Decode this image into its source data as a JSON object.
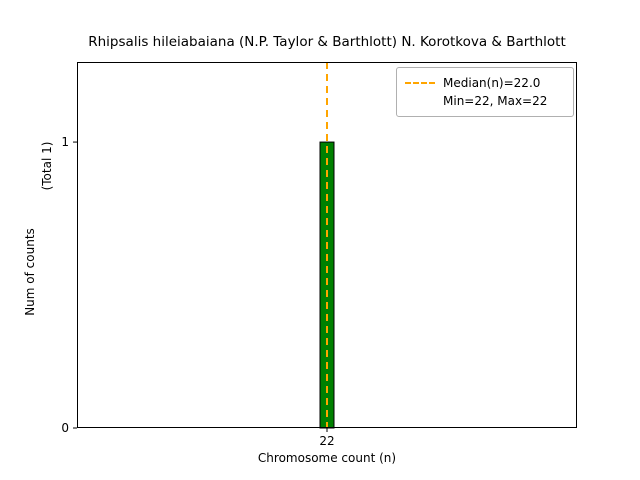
{
  "figure": {
    "title": "Rhipsalis hileiabaiana (N.P. Taylor & Barthlott) N. Korotkova & Barthlott",
    "xlabel": "Chromosome count (n)",
    "ylabel_main": "Num of counts",
    "ylabel_total": "(Total 1)",
    "legend": {
      "median_label": "Median(n)=22.0",
      "minmax_label": "Min=22, Max=22"
    }
  },
  "chart_data": {
    "type": "bar",
    "title": "Rhipsalis hileiabaiana (N.P. Taylor & Barthlott) N. Korotkova & Barthlott",
    "xlabel": "Chromosome count (n)",
    "ylabel": "Num of counts (Total 1)",
    "categories": [
      22
    ],
    "values": [
      1
    ],
    "series": [
      {
        "name": "counts",
        "values": [
          1
        ]
      }
    ],
    "stats": {
      "median": 22.0,
      "min": 22,
      "max": 22,
      "total_counts": 1
    },
    "median_line": {
      "x": 22,
      "color": "#ffa500",
      "style": "dashed",
      "label": "Median(n)=22.0"
    },
    "bar_color": "#008000",
    "bar_edge_color": "#000000",
    "xlim": [
      21.72,
      22.28
    ],
    "ylim": [
      0,
      1.28
    ],
    "xticks": [
      22
    ],
    "yticks": [
      0,
      1
    ],
    "grid": false,
    "legend_position": "upper right"
  }
}
